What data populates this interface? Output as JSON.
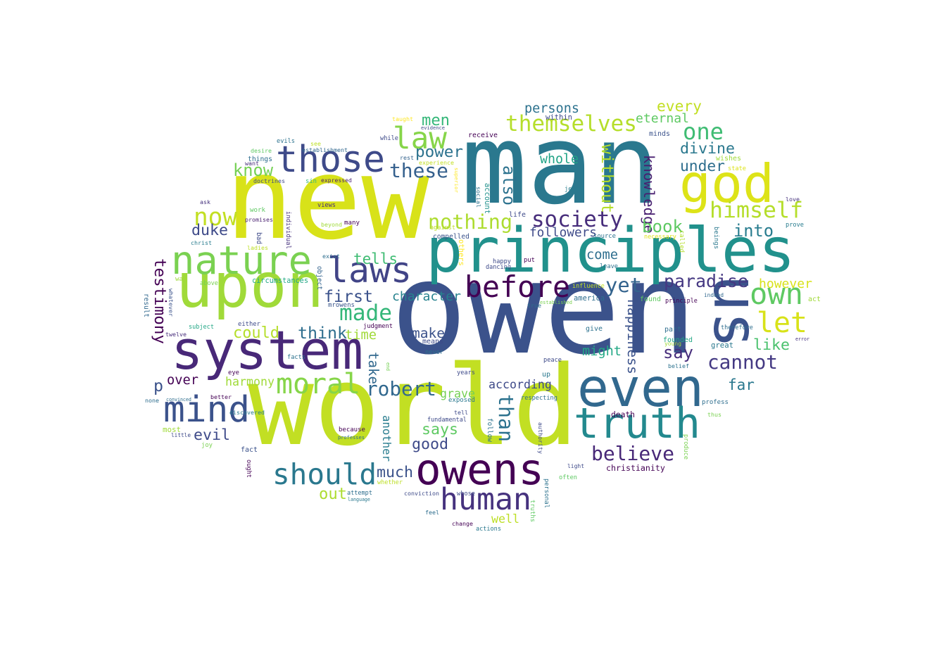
{
  "words": [
    {
      "text": "owen",
      "color": "#3b528b"
    },
    {
      "text": "man",
      "color": "#2a788e"
    },
    {
      "text": "new",
      "color": "#d8e219"
    },
    {
      "text": "world",
      "color": "#c2df23"
    },
    {
      "text": "principles",
      "color": "#21918c"
    },
    {
      "text": "upon",
      "color": "#a0da39"
    },
    {
      "text": "system",
      "color": "#482878"
    },
    {
      "text": "us",
      "color": "#3b528b"
    },
    {
      "text": "god",
      "color": "#dde318"
    },
    {
      "text": "even",
      "color": "#31688e"
    },
    {
      "text": "owens",
      "color": "#440154"
    },
    {
      "text": "truth",
      "color": "#23898e"
    },
    {
      "text": "nature",
      "color": "#7ad151"
    },
    {
      "text": "those",
      "color": "#3e4a89"
    },
    {
      "text": "laws",
      "color": "#414487"
    },
    {
      "text": "mind",
      "color": "#3b528b"
    },
    {
      "text": "human",
      "color": "#46327e"
    },
    {
      "text": "should",
      "color": "#2a788e"
    },
    {
      "text": "before",
      "color": "#440154"
    },
    {
      "text": "let",
      "color": "#d8e219"
    },
    {
      "text": "own",
      "color": "#5ec962"
    },
    {
      "text": "moral",
      "color": "#86d549"
    },
    {
      "text": "law",
      "color": "#86d549"
    },
    {
      "text": "themselves",
      "color": "#b5de2b"
    },
    {
      "text": "himself",
      "color": "#b5de2b"
    },
    {
      "text": "society",
      "color": "#472d7b"
    },
    {
      "text": "nothing",
      "color": "#addc30"
    },
    {
      "text": "cannot",
      "color": "#443983"
    },
    {
      "text": "robert",
      "color": "#31688e"
    },
    {
      "text": "believe",
      "color": "#482878"
    },
    {
      "text": "paradise",
      "color": "#453882"
    },
    {
      "text": "these",
      "color": "#35608d"
    },
    {
      "text": "one",
      "color": "#3fbc73"
    },
    {
      "text": "now",
      "color": "#c2df23"
    },
    {
      "text": "made",
      "color": "#35b779"
    },
    {
      "text": "yet",
      "color": "#33638d"
    },
    {
      "text": "without",
      "color": "#b5de2b"
    },
    {
      "text": "also",
      "color": "#2c728e"
    },
    {
      "text": "knowledge",
      "color": "#481f70"
    },
    {
      "text": "than",
      "color": "#2c728e"
    },
    {
      "text": "happiness",
      "color": "#3b528b"
    },
    {
      "text": "testimony",
      "color": "#440154"
    },
    {
      "text": "duke",
      "color": "#3e4a89"
    },
    {
      "text": "book",
      "color": "#5ec962"
    },
    {
      "text": "first",
      "color": "#3b528b"
    },
    {
      "text": "tells",
      "color": "#3fbc73"
    },
    {
      "text": "power",
      "color": "#2c728e"
    },
    {
      "text": "say",
      "color": "#472d7b"
    },
    {
      "text": "into",
      "color": "#287c8e"
    },
    {
      "text": "every",
      "color": "#c2df23"
    },
    {
      "text": "divine",
      "color": "#2a788e"
    },
    {
      "text": "character",
      "color": "#26828e"
    },
    {
      "text": "under",
      "color": "#2e6e8e"
    },
    {
      "text": "come",
      "color": "#2e6e8e"
    },
    {
      "text": "whole",
      "color": "#20a386"
    },
    {
      "text": "know",
      "color": "#75d054"
    },
    {
      "text": "think",
      "color": "#2e6e8e"
    },
    {
      "text": "followers",
      "color": "#3e4a89"
    },
    {
      "text": "like",
      "color": "#4ac16d"
    },
    {
      "text": "men",
      "color": "#35b779"
    },
    {
      "text": "eternal",
      "color": "#5ec962"
    },
    {
      "text": "however",
      "color": "#d8e219"
    },
    {
      "text": "persons",
      "color": "#2c728e"
    },
    {
      "text": "could",
      "color": "#b5de2b"
    },
    {
      "text": "much",
      "color": "#3b528b"
    },
    {
      "text": "might",
      "color": "#22a785"
    },
    {
      "text": "far",
      "color": "#2a788e"
    },
    {
      "text": "says",
      "color": "#5ec962"
    },
    {
      "text": "another",
      "color": "#287c8e"
    },
    {
      "text": "evil",
      "color": "#3e4a89"
    },
    {
      "text": "good",
      "color": "#3e4a89"
    },
    {
      "text": "take",
      "color": "#31688e"
    },
    {
      "text": "according",
      "color": "#3e4a89"
    },
    {
      "text": "make",
      "color": "#3b528b"
    },
    {
      "text": "grave",
      "color": "#75d054"
    },
    {
      "text": "time",
      "color": "#a0da39"
    },
    {
      "text": "out",
      "color": "#addc30"
    },
    {
      "text": "well",
      "color": "#bddf26"
    },
    {
      "text": "over",
      "color": "#440154"
    },
    {
      "text": "harmony",
      "color": "#a0da39"
    },
    {
      "text": "p",
      "color": "#3b528b"
    },
    {
      "text": "evidence",
      "color": "#3e4a89"
    },
    {
      "text": "receive",
      "color": "#440154"
    },
    {
      "text": "while",
      "color": "#3e4a89"
    },
    {
      "text": "taught",
      "color": "#fde725"
    },
    {
      "text": "within",
      "color": "#3e4a89"
    },
    {
      "text": "rest",
      "color": "#33638d"
    },
    {
      "text": "experience",
      "color": "#c2df23"
    },
    {
      "text": "compelled",
      "color": "#3b528b"
    },
    {
      "text": "account",
      "color": "#21918c"
    },
    {
      "text": "social",
      "color": "#2c728e"
    },
    {
      "text": "superior",
      "color": "#fde725"
    },
    {
      "text": "establishment",
      "color": "#31688e"
    },
    {
      "text": "evils",
      "color": "#2c728e"
    },
    {
      "text": "see",
      "color": "#bddf26"
    },
    {
      "text": "desire",
      "color": "#5ec962"
    },
    {
      "text": "things",
      "color": "#2e6e8e"
    },
    {
      "text": "want",
      "color": "#472d7b"
    },
    {
      "text": "doctrines",
      "color": "#3e4a89"
    },
    {
      "text": "sin",
      "color": "#35b779"
    },
    {
      "text": "expressed",
      "color": "#481f70"
    },
    {
      "text": "ask",
      "color": "#46327e"
    },
    {
      "text": "views",
      "color": "#472d7b"
    },
    {
      "text": "work",
      "color": "#5ec962"
    },
    {
      "text": "promises",
      "color": "#481f70"
    },
    {
      "text": "bad",
      "color": "#3e4a89"
    },
    {
      "text": "individual",
      "color": "#46327e"
    },
    {
      "text": "beyond",
      "color": "#a0da39"
    },
    {
      "text": "many",
      "color": "#440154"
    },
    {
      "text": "christ",
      "color": "#287c8e"
    },
    {
      "text": "ladies",
      "color": "#bddf26"
    },
    {
      "text": "way",
      "color": "#a0da39"
    },
    {
      "text": "above",
      "color": "#7ad151"
    },
    {
      "text": "circumstances",
      "color": "#22a785"
    },
    {
      "text": "object",
      "color": "#33638d"
    },
    {
      "text": "mrowens",
      "color": "#39558c"
    },
    {
      "text": "exist",
      "color": "#2e6e8e"
    },
    {
      "text": "against",
      "color": "#bddf26"
    },
    {
      "text": "others",
      "color": "#fde725"
    },
    {
      "text": "jesus",
      "color": "#287c8e"
    },
    {
      "text": "wishes",
      "color": "#a0da39"
    },
    {
      "text": "state",
      "color": "#dde318"
    },
    {
      "text": "love",
      "color": "#46327e"
    },
    {
      "text": "prove",
      "color": "#287c8e"
    },
    {
      "text": "called",
      "color": "#b5de2b"
    },
    {
      "text": "beings",
      "color": "#2a788e"
    },
    {
      "text": "necessary",
      "color": "#dde318"
    },
    {
      "text": "minds",
      "color": "#3b528b"
    },
    {
      "text": "life",
      "color": "#3e4a89"
    },
    {
      "text": "source",
      "color": "#2c728e"
    },
    {
      "text": "leave",
      "color": "#2c728e"
    },
    {
      "text": "happy",
      "color": "#3e4a89"
    },
    {
      "text": "put",
      "color": "#440154"
    },
    {
      "text": "dancing",
      "color": "#3e4a89"
    },
    {
      "text": "influence",
      "color": "#c2df23"
    },
    {
      "text": "america",
      "color": "#2e6e8e"
    },
    {
      "text": "established",
      "color": "#7ad151"
    },
    {
      "text": "true",
      "color": "#2e6e8e"
    },
    {
      "text": "found",
      "color": "#5ec962"
    },
    {
      "text": "principle",
      "color": "#440154"
    },
    {
      "text": "indeed",
      "color": "#31688e"
    },
    {
      "text": "act",
      "color": "#a0da39"
    },
    {
      "text": "therefore",
      "color": "#2e6e8e"
    },
    {
      "text": "part",
      "color": "#2e6e8e"
    },
    {
      "text": "give",
      "color": "#2c728e"
    },
    {
      "text": "error",
      "color": "#46327e"
    },
    {
      "text": "young",
      "color": "#a0da39"
    },
    {
      "text": "founded",
      "color": "#22a785"
    },
    {
      "text": "great",
      "color": "#2a788e"
    },
    {
      "text": "belief",
      "color": "#2c728e"
    },
    {
      "text": "peace",
      "color": "#3e4a89"
    },
    {
      "text": "up",
      "color": "#2a788e"
    },
    {
      "text": "result",
      "color": "#31688e"
    },
    {
      "text": "whatever",
      "color": "#3b528b"
    },
    {
      "text": "twelve",
      "color": "#472d7b"
    },
    {
      "text": "subject",
      "color": "#22a785"
    },
    {
      "text": "either",
      "color": "#3e4a89"
    },
    {
      "text": "judgment",
      "color": "#440154"
    },
    {
      "text": "means",
      "color": "#3e4a89"
    },
    {
      "text": "never",
      "color": "#2c728e"
    },
    {
      "text": "facts",
      "color": "#2c728e"
    },
    {
      "text": "eye",
      "color": "#440154"
    },
    {
      "text": "end",
      "color": "#75d054"
    },
    {
      "text": "years",
      "color": "#3e4a89"
    },
    {
      "text": "better",
      "color": "#440154"
    },
    {
      "text": "discovered",
      "color": "#287c8e"
    },
    {
      "text": "convinced",
      "color": "#2e6e8e"
    },
    {
      "text": "none",
      "color": "#2e6e8e"
    },
    {
      "text": "exposed",
      "color": "#2a788e"
    },
    {
      "text": "respecting",
      "color": "#2e6e8e"
    },
    {
      "text": "profess",
      "color": "#2e6e8e"
    },
    {
      "text": "death",
      "color": "#440154"
    },
    {
      "text": "thus",
      "color": "#7ad151"
    },
    {
      "text": "fundamental",
      "color": "#3e4a89"
    },
    {
      "text": "tell",
      "color": "#3e4a89"
    },
    {
      "text": "follow",
      "color": "#2c728e"
    },
    {
      "text": "authority",
      "color": "#3e4a89"
    },
    {
      "text": "most",
      "color": "#a0da39"
    },
    {
      "text": "little",
      "color": "#3e4a89"
    },
    {
      "text": "joy",
      "color": "#7ad151"
    },
    {
      "text": "because",
      "color": "#440154"
    },
    {
      "text": "professes",
      "color": "#2e6e8e"
    },
    {
      "text": "fact",
      "color": "#3b528b"
    },
    {
      "text": "ought",
      "color": "#440154"
    },
    {
      "text": "light",
      "color": "#3e4a89"
    },
    {
      "text": "produce",
      "color": "#7ad151"
    },
    {
      "text": "christianity",
      "color": "#440154"
    },
    {
      "text": "often",
      "color": "#5ec962"
    },
    {
      "text": "personal",
      "color": "#2c728e"
    },
    {
      "text": "truths",
      "color": "#5ec962"
    },
    {
      "text": "whether",
      "color": "#bddf26"
    },
    {
      "text": "attempt",
      "color": "#2e6e8e"
    },
    {
      "text": "language",
      "color": "#2a788e"
    },
    {
      "text": "conviction",
      "color": "#3e4a89"
    },
    {
      "text": "whose",
      "color": "#3e4a89"
    },
    {
      "text": "feel",
      "color": "#2e6e8e"
    },
    {
      "text": "change",
      "color": "#440154"
    },
    {
      "text": "actions",
      "color": "#2a788e"
    }
  ]
}
